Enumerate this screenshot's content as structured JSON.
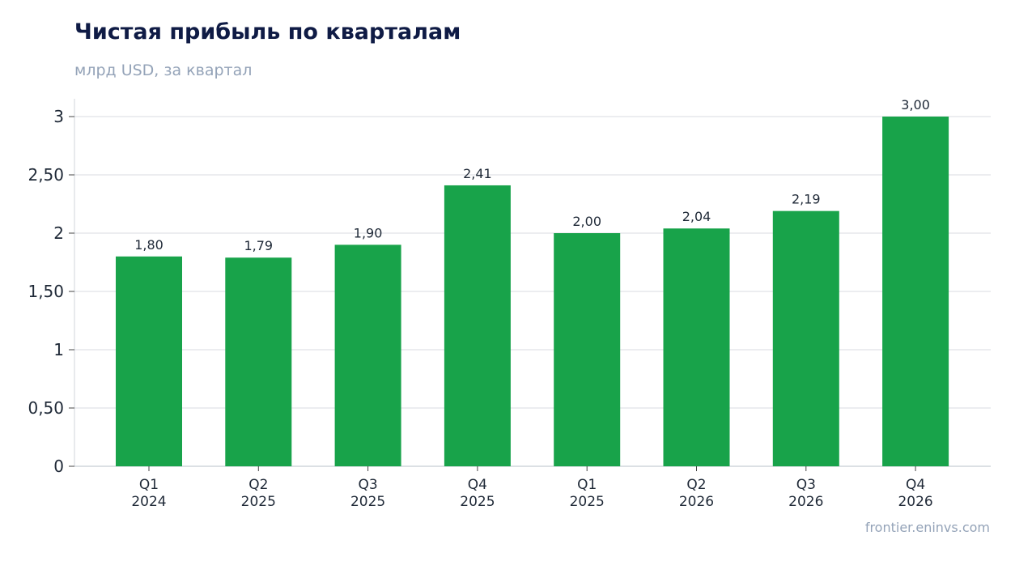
{
  "header": {
    "title": "Чистая прибыль по кварталам",
    "subtitle": "млрд USD, за квартал"
  },
  "footer": {
    "source": "frontier.eninvs.com"
  },
  "colors": {
    "bar": "#18a34a",
    "grid": "#e5e7eb",
    "axis": "#d1d5db",
    "title": "#0f1b45",
    "muted": "#94a3b8",
    "text": "#1f2937"
  },
  "chart_data": {
    "type": "bar",
    "categories": [
      [
        "Q1",
        "2024"
      ],
      [
        "Q2",
        "2025"
      ],
      [
        "Q3",
        "2025"
      ],
      [
        "Q4",
        "2025"
      ],
      [
        "Q1",
        "2025"
      ],
      [
        "Q2",
        "2026"
      ],
      [
        "Q3",
        "2026"
      ],
      [
        "Q4",
        "2026"
      ]
    ],
    "values": [
      1.8,
      1.79,
      1.9,
      2.41,
      2.0,
      2.04,
      2.19,
      3.0
    ],
    "data_labels": [
      "1,80",
      "1,79",
      "1,90",
      "2,41",
      "2,00",
      "2,04",
      "2,19",
      "3,00"
    ],
    "title": "Чистая прибыль по кварталам",
    "subtitle": "млрд USD, за квартал",
    "xlabel": "",
    "ylabel": "",
    "ylim": [
      0,
      3.15
    ],
    "yticks": [
      0,
      0.5,
      1,
      1.5,
      2,
      2.5,
      3
    ],
    "ytick_labels": [
      "0",
      "0,50",
      "1",
      "1,50",
      "2",
      "2,50",
      "3"
    ],
    "grid": "horizontal",
    "legend": "none"
  }
}
